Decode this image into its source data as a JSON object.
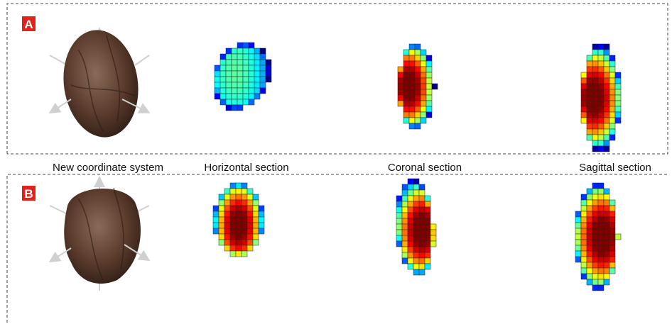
{
  "panels": [
    {
      "label": "A"
    },
    {
      "label": "B"
    }
  ],
  "column_titles": [
    "New coordinate system",
    "Horizontal section",
    "Coronal section",
    "Sagittal section"
  ]
}
